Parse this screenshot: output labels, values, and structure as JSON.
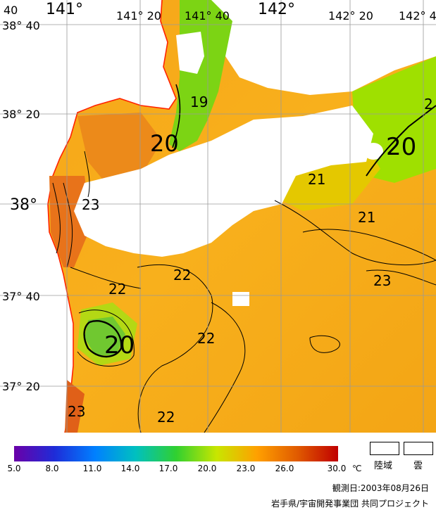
{
  "map": {
    "lon_labels": [
      "141°",
      "141° 20",
      "141° 40",
      "142°",
      "142° 20",
      "142° 40"
    ],
    "lat_labels": [
      "38° 40",
      "38° 20",
      "38°",
      "37° 40",
      "37° 20"
    ],
    "corner_label": "40",
    "contour_labels": [
      "19",
      "20",
      "20",
      "21",
      "21",
      "23",
      "22",
      "22",
      "20",
      "22",
      "23",
      "22",
      "23",
      "2"
    ]
  },
  "legend": {
    "ticks": [
      "5.0",
      "8.0",
      "11.0",
      "14.0",
      "17.0",
      "20.0",
      "23.0",
      "26.0",
      "30.0"
    ],
    "unit": "℃",
    "land_label": "陸域",
    "cloud_label": "雲",
    "colors": [
      "#6a00a8",
      "#1e2cd8",
      "#0080ff",
      "#00c0c0",
      "#30d030",
      "#c8e600",
      "#ffa000",
      "#e05a00",
      "#c00000"
    ]
  },
  "footer": {
    "observation_date": "観測日:2003年08月26日",
    "credit": "岩手県/宇宙開発事業団 共同プロジェクト"
  }
}
